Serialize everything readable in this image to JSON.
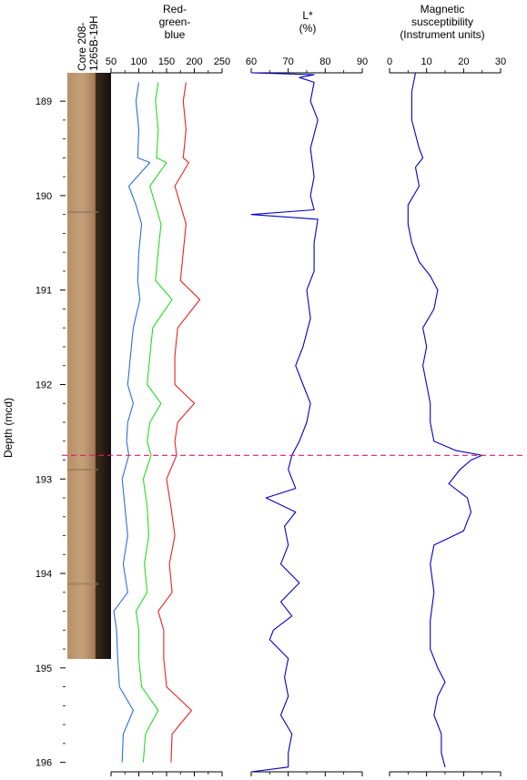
{
  "chart_data": {
    "type": "line",
    "y_axis": {
      "label": "Depth (mcd)",
      "range": [
        188.7,
        196.1
      ],
      "inverted": true,
      "ticks": [
        "189",
        "190",
        "191",
        "192",
        "193",
        "194",
        "195",
        "196"
      ]
    },
    "core_label": [
      "Core 208-",
      "1265B-19H"
    ],
    "marker_line": {
      "depth": 192.75,
      "color": "#e8196e",
      "style": "dashed"
    },
    "panels": [
      {
        "title": [
          "Red-",
          "green-",
          "blue"
        ],
        "xlim": [
          50,
          250
        ],
        "ticks": [
          "50",
          "100",
          "150",
          "200",
          "250"
        ],
        "series": [
          {
            "color": "#2a6fe0",
            "depth": [
              188.8,
              189.0,
              189.3,
              189.6,
              189.65,
              189.9,
              190.1,
              190.3,
              190.6,
              190.9,
              191.1,
              191.4,
              191.7,
              192.0,
              192.2,
              192.4,
              192.6,
              192.75,
              193.0,
              193.3,
              193.6,
              193.9,
              194.2,
              194.4,
              194.6,
              194.9,
              195.2,
              195.45,
              195.7,
              196.0
            ],
            "value": [
              100,
              95,
              100,
              98,
              120,
              82,
              95,
              105,
              100,
              98,
              102,
              90,
              85,
              80,
              90,
              80,
              78,
              82,
              70,
              75,
              80,
              72,
              80,
              55,
              60,
              62,
              65,
              90,
              72,
              70
            ]
          },
          {
            "color": "#22dd22",
            "depth": [
              188.8,
              189.0,
              189.3,
              189.6,
              189.65,
              189.9,
              190.1,
              190.3,
              190.6,
              190.9,
              191.1,
              191.4,
              191.7,
              192.0,
              192.2,
              192.4,
              192.6,
              192.75,
              193.0,
              193.3,
              193.6,
              193.9,
              194.2,
              194.4,
              194.6,
              194.9,
              195.2,
              195.45,
              195.7,
              196.0
            ],
            "value": [
              135,
              130,
              135,
              132,
              150,
              120,
              130,
              140,
              135,
              130,
              160,
              125,
              120,
              115,
              140,
              120,
              115,
              122,
              108,
              115,
              118,
              110,
              115,
              95,
              100,
              100,
              105,
              135,
              112,
              108
            ]
          },
          {
            "color": "#ee2020",
            "depth": [
              188.8,
              189.0,
              189.3,
              189.6,
              189.65,
              189.9,
              190.1,
              190.3,
              190.6,
              190.9,
              191.1,
              191.4,
              191.7,
              192.0,
              192.2,
              192.4,
              192.6,
              192.75,
              193.0,
              193.3,
              193.6,
              193.9,
              194.2,
              194.4,
              194.6,
              194.9,
              195.2,
              195.45,
              195.7,
              196.0
            ],
            "value": [
              185,
              180,
              185,
              180,
              190,
              165,
              175,
              185,
              180,
              175,
              210,
              170,
              165,
              165,
              200,
              170,
              165,
              168,
              150,
              158,
              165,
              155,
              160,
              135,
              145,
              145,
              150,
              195,
              160,
              158
            ]
          }
        ]
      },
      {
        "title": [
          "L*",
          "(%)"
        ],
        "xlim": [
          60,
          90
        ],
        "ticks": [
          "60",
          "70",
          "80",
          "90"
        ],
        "series": [
          {
            "color": "#0000cc",
            "depth": [
              188.7,
              188.72,
              188.75,
              188.8,
              189.0,
              189.2,
              189.5,
              189.8,
              190.0,
              190.15,
              190.2,
              190.25,
              190.5,
              190.8,
              191.0,
              191.3,
              191.6,
              191.8,
              192.0,
              192.2,
              192.4,
              192.6,
              192.75,
              192.9,
              193.1,
              193.2,
              193.35,
              193.5,
              193.7,
              193.9,
              194.1,
              194.3,
              194.45,
              194.6,
              194.7,
              194.9,
              195.1,
              195.3,
              195.5,
              195.7,
              195.9,
              196.05,
              196.1
            ],
            "value": [
              60,
              77,
              73,
              77,
              76,
              78,
              76,
              77,
              76,
              77,
              60,
              78,
              77,
              77,
              75,
              76,
              74,
              72,
              74,
              76,
              75,
              73,
              71,
              70,
              72,
              64,
              72,
              69,
              70,
              68,
              73,
              68,
              71,
              66,
              65,
              70,
              69,
              70,
              68,
              71,
              70,
              70,
              60
            ]
          }
        ]
      },
      {
        "title": [
          "Magnetic",
          "susceptibility",
          "(Instrument units)"
        ],
        "xlim": [
          0,
          30
        ],
        "ticks": [
          "0",
          "10",
          "20",
          "30"
        ],
        "series": [
          {
            "color": "#0000cc",
            "depth": [
              188.7,
              188.9,
              189.2,
              189.5,
              189.6,
              189.7,
              189.9,
              190.1,
              190.3,
              190.5,
              190.7,
              190.85,
              191.0,
              191.2,
              191.4,
              191.6,
              191.8,
              192.0,
              192.2,
              192.4,
              192.6,
              192.7,
              192.75,
              192.8,
              192.9,
              193.05,
              193.2,
              193.35,
              193.55,
              193.7,
              193.9,
              194.2,
              194.5,
              194.8,
              195.0,
              195.15,
              195.3,
              195.5,
              195.7,
              195.9,
              196.05
            ],
            "value": [
              7,
              6,
              6,
              8,
              9,
              7,
              8,
              5,
              5,
              6,
              8,
              11,
              13,
              12,
              9,
              10,
              9,
              10,
              11,
              11,
              12,
              18,
              25,
              22,
              19,
              16,
              21,
              22,
              20,
              12,
              11,
              12,
              11,
              11,
              13,
              15,
              13,
              12,
              14,
              14,
              15
            ]
          }
        ]
      }
    ]
  }
}
